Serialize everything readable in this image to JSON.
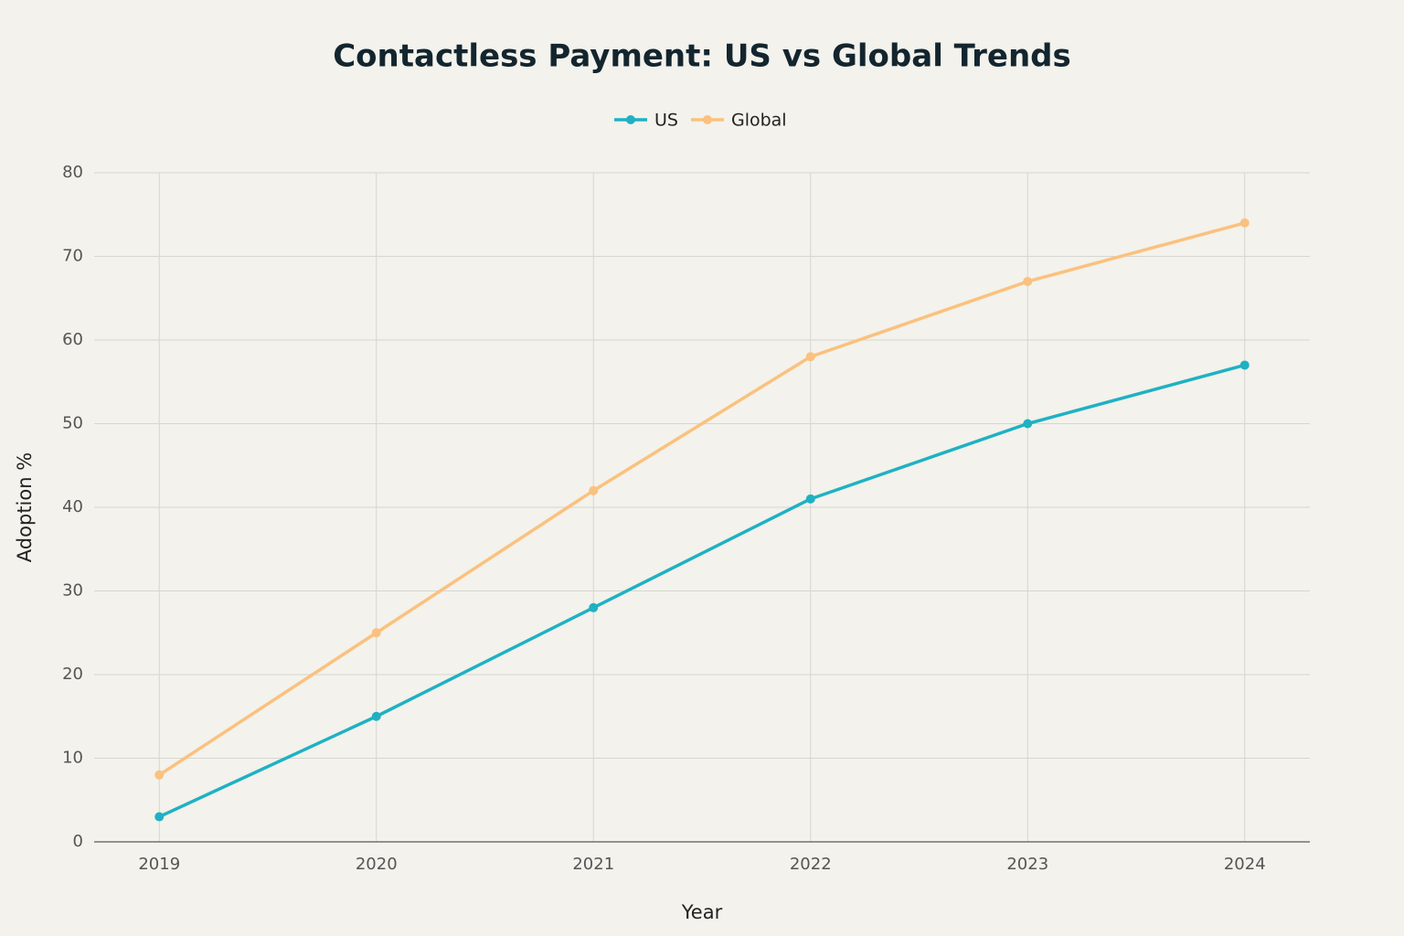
{
  "chart_data": {
    "type": "line",
    "title": "Contactless Payment: US vs Global Trends",
    "x_label": "Year",
    "y_label": "Adoption %",
    "x": [
      2019,
      2020,
      2021,
      2022,
      2023,
      2024
    ],
    "series": [
      {
        "name": "US",
        "color": "#1fb1c3",
        "values": [
          3,
          15,
          28,
          41,
          50,
          57
        ]
      },
      {
        "name": "Global",
        "color": "#fbc17e",
        "values": [
          8,
          25,
          42,
          58,
          67,
          74
        ]
      }
    ],
    "xlim": [
      2018.7,
      2024.3
    ],
    "xticks": [
      2019,
      2020,
      2021,
      2022,
      2023,
      2024
    ],
    "ylim": [
      0,
      80
    ],
    "yticks": [
      0,
      10,
      20,
      30,
      40,
      50,
      60,
      70,
      80
    ],
    "grid": true,
    "legend": "top"
  }
}
